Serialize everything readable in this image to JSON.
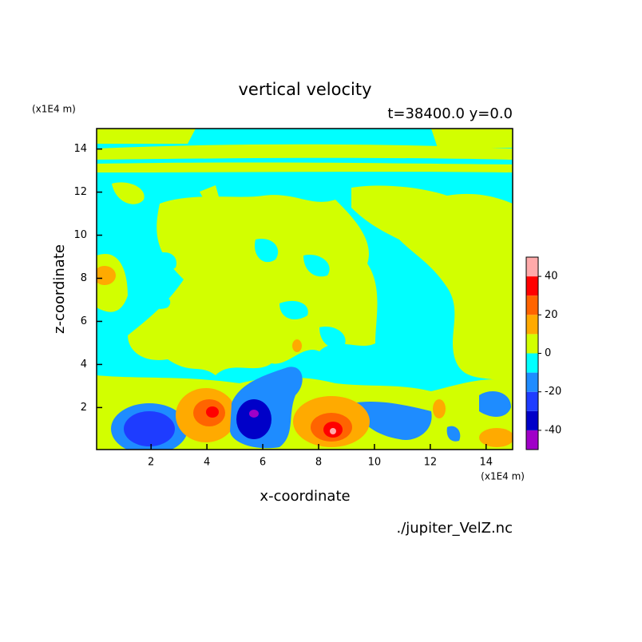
{
  "chart_data": {
    "type": "contour",
    "title": "vertical velocity",
    "subtitle": "t=38400.0 y=0.0",
    "x_label": "x-coordinate",
    "y_label": "z-coordinate",
    "x_unit": "(x1E4 m)",
    "y_unit": "(x1E4 m)",
    "source": "./jupiter_VelZ.nc",
    "xlim": [
      0.05,
      14.95
    ],
    "ylim": [
      0.05,
      14.95
    ],
    "xticks": [
      2,
      4,
      6,
      8,
      10,
      12,
      14
    ],
    "yticks": [
      2,
      4,
      6,
      8,
      10,
      12,
      14
    ],
    "levels": [
      -50,
      -40,
      -30,
      -20,
      -10,
      0,
      10,
      20,
      30,
      40,
      50
    ],
    "colors": [
      "#a000c8",
      "#0000c8",
      "#1e3cff",
      "#1e8cff",
      "#00ffff",
      "#d2ff00",
      "#ffaa00",
      "#ff6400",
      "#ff0000",
      "#ffaaaa"
    ],
    "colorbar_ticks": [
      -40,
      -20,
      0,
      20,
      40
    ]
  }
}
